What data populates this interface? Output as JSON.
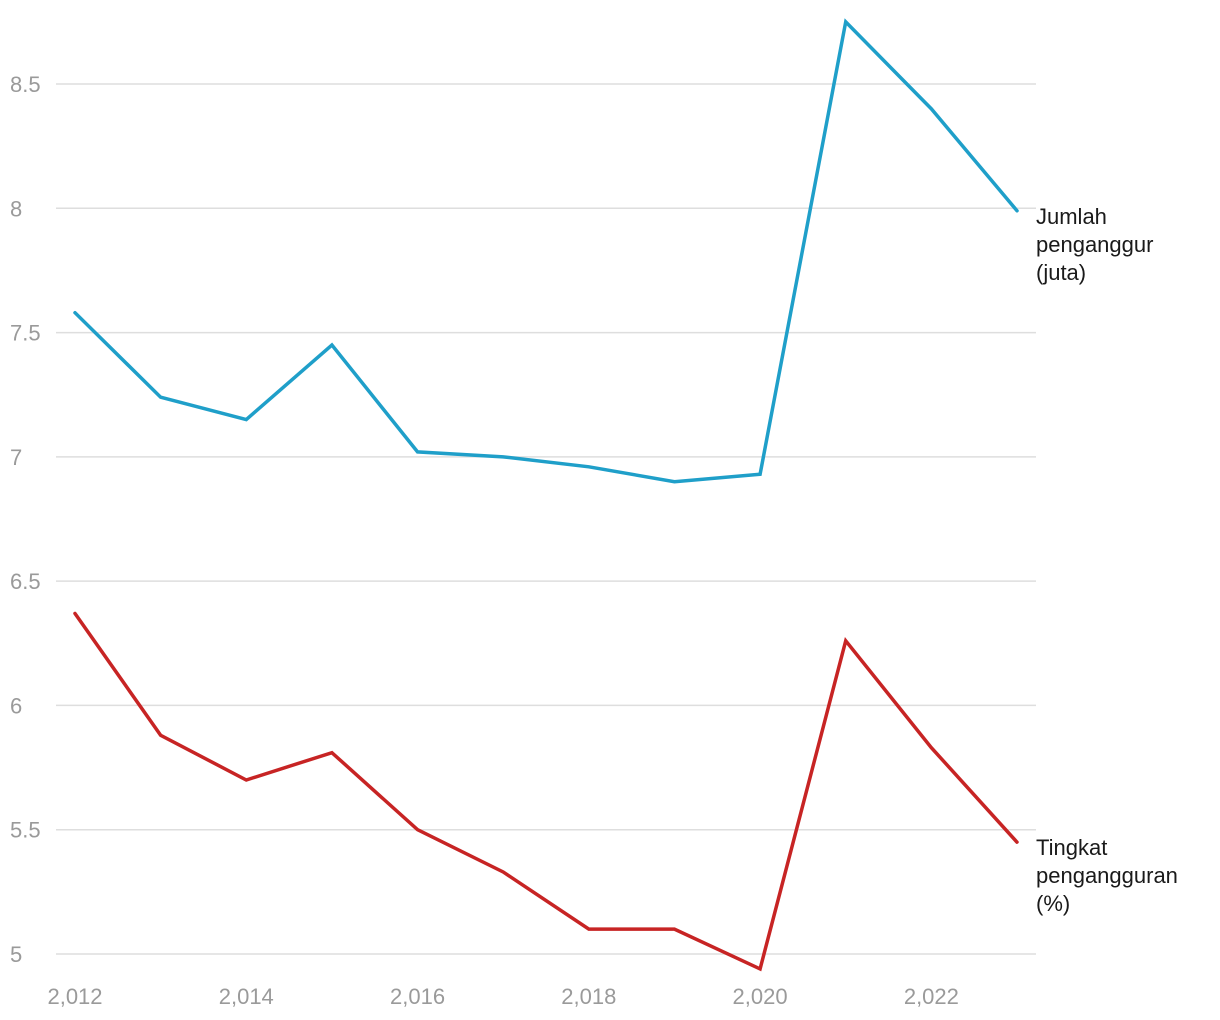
{
  "chart_data": {
    "type": "line",
    "title": "",
    "xlabel": "",
    "ylabel": "",
    "x": [
      2012,
      2013,
      2014,
      2015,
      2016,
      2017,
      2018,
      2019,
      2020,
      2021,
      2022,
      2023
    ],
    "x_ticks": [
      "2,012",
      "2,014",
      "2,016",
      "2,018",
      "2,020",
      "2,022"
    ],
    "y_ticks": [
      "5",
      "5.5",
      "6",
      "6.5",
      "7",
      "7.5",
      "8",
      "8.5"
    ],
    "ylim": [
      4.95,
      8.75
    ],
    "grid": true,
    "series": [
      {
        "name": "Jumlah penganggur (juta)",
        "label_lines": [
          "Jumlah",
          "penganggur",
          "(juta)"
        ],
        "color": "#1f9fc9",
        "values": [
          7.58,
          7.24,
          7.15,
          7.45,
          7.02,
          7.0,
          6.96,
          6.9,
          6.93,
          8.75,
          8.4,
          7.99
        ]
      },
      {
        "name": "Tingkat pengangguran (%)",
        "label_lines": [
          "Tingkat",
          "pengangguran",
          "(%)"
        ],
        "color": "#c72424",
        "values": [
          6.37,
          5.88,
          5.7,
          5.81,
          5.5,
          5.33,
          5.1,
          5.1,
          4.94,
          6.26,
          5.83,
          5.45
        ]
      }
    ]
  }
}
